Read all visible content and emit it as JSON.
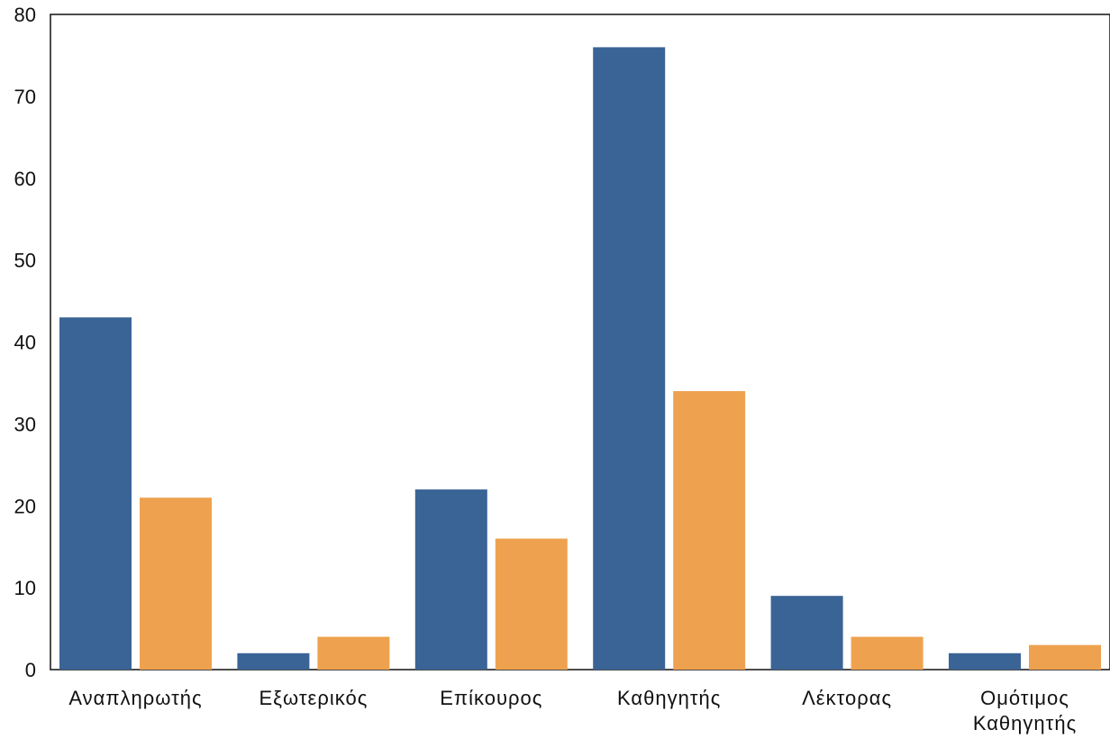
{
  "chart_data": {
    "type": "bar",
    "title": "",
    "xlabel": "",
    "ylabel": "",
    "ylim": [
      0,
      80
    ],
    "yticks": [
      0,
      10,
      20,
      30,
      40,
      50,
      60,
      70,
      80
    ],
    "grid": false,
    "legend": "none",
    "categories": [
      [
        "Αναπληρωτής"
      ],
      [
        "Εξωτερικός"
      ],
      [
        "Επίκουρος"
      ],
      [
        "Καθηγητής"
      ],
      [
        "Λέκτορας"
      ],
      [
        "Ομότιμος",
        "Καθηγητής"
      ]
    ],
    "series": [
      {
        "values": [
          43,
          2,
          22,
          76,
          9,
          2
        ],
        "color": "#3a6496"
      },
      {
        "values": [
          21,
          4,
          16,
          34,
          4,
          3
        ],
        "color": "#eea24f"
      }
    ]
  }
}
